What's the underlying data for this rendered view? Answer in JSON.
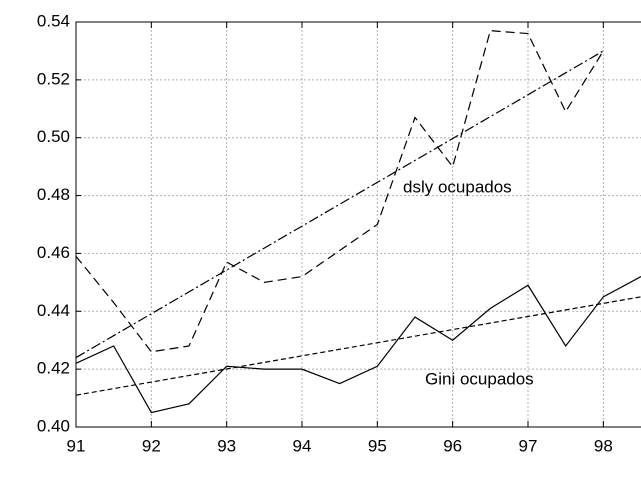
{
  "chart_data": {
    "type": "line",
    "xlim": [
      91,
      98.5
    ],
    "xticks": [
      91,
      92,
      93,
      94,
      95,
      96,
      97,
      98
    ],
    "ylim": [
      0.4,
      0.54
    ],
    "yticks": [
      {
        "value": 0.4,
        "label": "0.40"
      },
      0.42,
      0.44,
      0.46,
      0.48,
      {
        "value": 0.5,
        "label": "0.50"
      },
      0.52,
      0.54
    ],
    "grid": true,
    "series": [
      {
        "name": "dsly ocupados",
        "color": "#000000",
        "style": "dashed",
        "x": [
          91,
          91.5,
          92,
          92.5,
          93,
          93.5,
          94,
          94.5,
          95,
          95.5,
          96,
          96.5,
          97,
          97.5,
          98
        ],
        "values": [
          0.459,
          0.443,
          0.426,
          0.428,
          0.457,
          0.45,
          0.452,
          0.461,
          0.47,
          0.507,
          0.49,
          0.537,
          0.536,
          0.509,
          0.53
        ]
      },
      {
        "name": "Gini ocupados",
        "color": "#000000",
        "style": "solid",
        "x": [
          91,
          91.5,
          92,
          92.5,
          93,
          93.5,
          94,
          94.5,
          95,
          95.5,
          96,
          96.5,
          97,
          97.5,
          98,
          98.5
        ],
        "values": [
          0.422,
          0.428,
          0.405,
          0.408,
          0.421,
          0.42,
          0.42,
          0.415,
          0.421,
          0.438,
          0.43,
          0.441,
          0.449,
          0.428,
          0.445,
          0.452
        ]
      },
      {
        "color": "#000000",
        "style": "dashdot",
        "x": [
          91,
          98
        ],
        "values": [
          0.424,
          0.53
        ]
      },
      {
        "color": "#000000",
        "style": "shortdash",
        "x": [
          91,
          98.5
        ],
        "values": [
          0.411,
          0.445
        ]
      }
    ]
  }
}
